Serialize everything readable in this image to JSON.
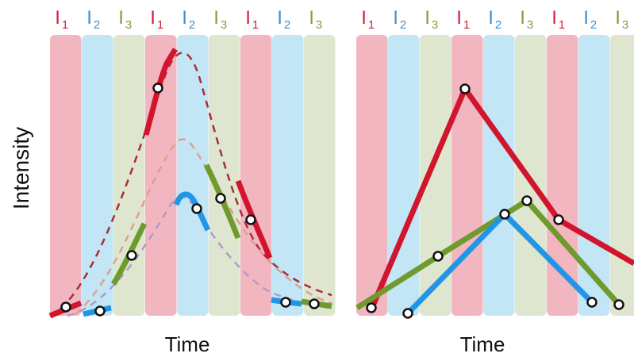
{
  "y_axis_label": "Intensity",
  "x_axis_label": "Time",
  "channels": [
    {
      "id": "I1",
      "letter": "I",
      "sub": "1",
      "text_color": "#d4203a",
      "band_color": "#f2b6c0"
    },
    {
      "id": "I2",
      "letter": "I",
      "sub": "2",
      "text_color": "#3f8fd0",
      "band_color": "#c2e6f5"
    },
    {
      "id": "I3",
      "letter": "I",
      "sub": "3",
      "text_color": "#7fa040",
      "band_color": "#dfe6cf"
    }
  ],
  "panels": [
    {
      "name": "left-panel",
      "band_sequence": [
        "I1",
        "I2",
        "I3",
        "I1",
        "I2",
        "I3",
        "I1",
        "I2",
        "I3"
      ],
      "x_label": "Time"
    },
    {
      "name": "right-panel",
      "band_sequence": [
        "I1",
        "I2",
        "I3",
        "I1",
        "I2",
        "I3",
        "I1",
        "I2",
        "I3"
      ],
      "x_label": "Time"
    }
  ],
  "series_colors": {
    "I1": "#d0152c",
    "I2": "#2196e6",
    "I3": "#6f9a2e"
  }
}
